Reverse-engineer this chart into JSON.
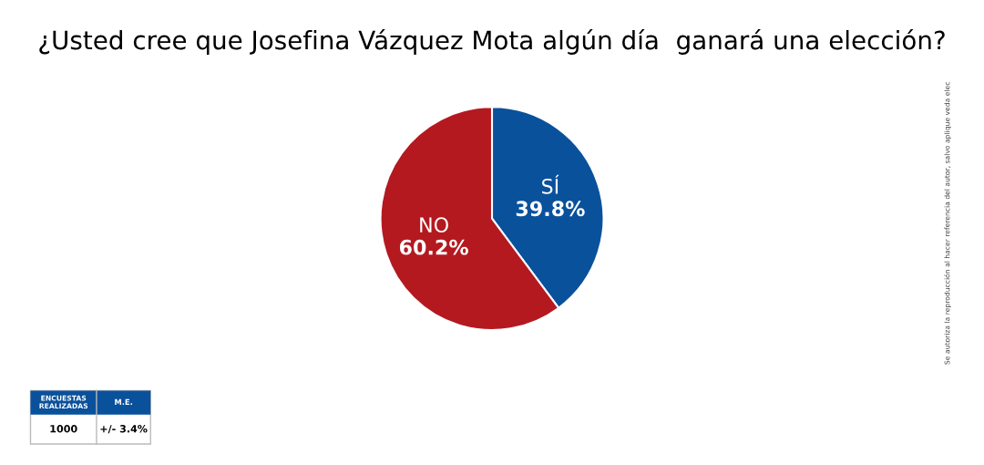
{
  "chart_data": {
    "type": "pie",
    "title": "¿Usted cree que Josefina Vázquez Mota algún día  ganará una elección?",
    "categories": [
      "SÍ",
      "NO"
    ],
    "values": [
      39.8,
      60.2
    ],
    "colors": [
      "#0a519c",
      "#b41920"
    ],
    "value_labels": [
      "39.8%",
      "60.2%"
    ],
    "annotations": [
      "ENCUESTAS REALIZADAS",
      "M.E.",
      "1000",
      "+/- 3.4%",
      "Se autoriza la reproducción al hacer referencia del autor, salvo aplique veda elec"
    ]
  }
}
